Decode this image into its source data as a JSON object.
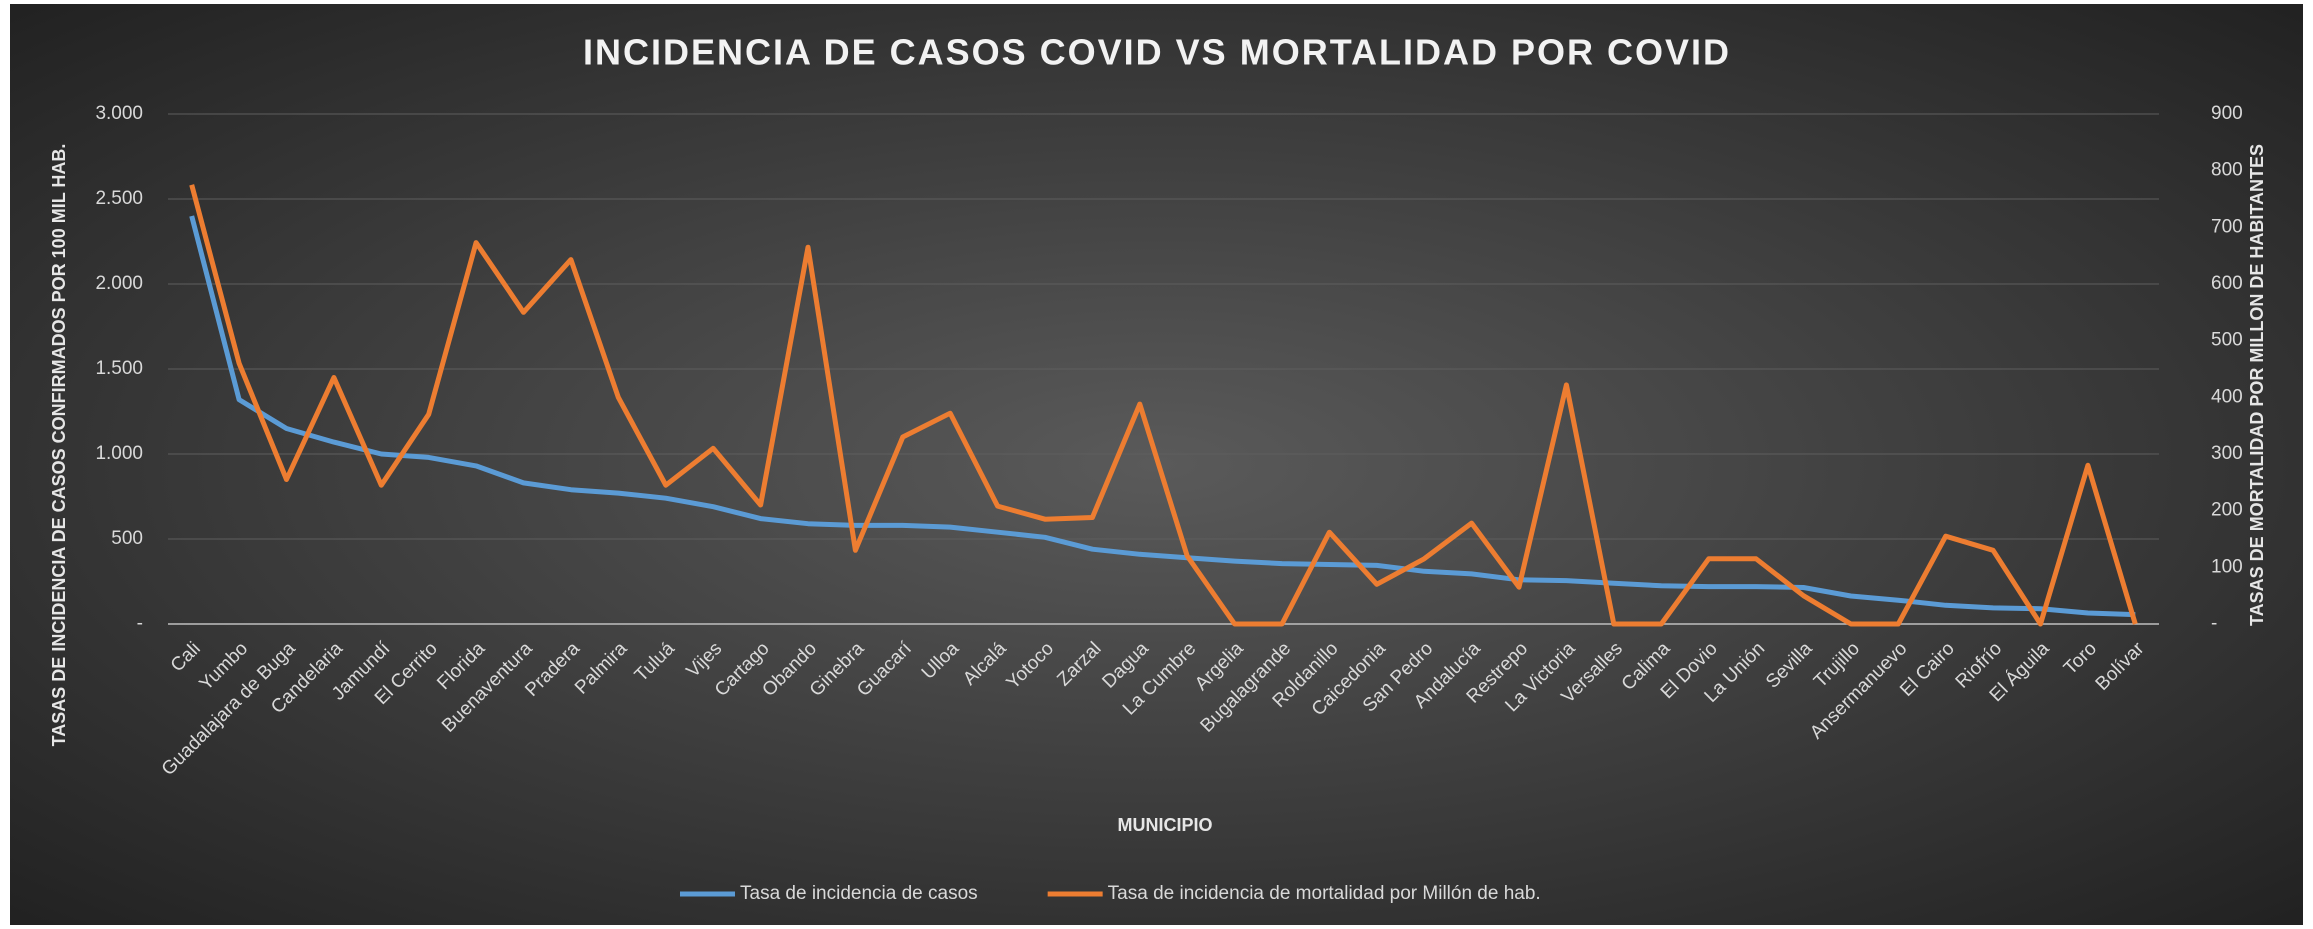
{
  "chart_data": {
    "type": "line",
    "title": "INCIDENCIA DE CASOS COVID VS MORTALIDAD POR COVID",
    "x_label": "MUNICIPIO",
    "y_label": "TASAS DE INCIDENCIA DE CASOS CONFIRMADOS POR 100 MIL HAB.",
    "y2_label": "TASAS DE MORTALIDAD POR MILLON DE HABITANTES",
    "categories": [
      "Cali",
      "Yumbo",
      "Guadalajara de Buga",
      "Candelaria",
      "Jamundí",
      "El Cerrito",
      "Florida",
      "Buenaventura",
      "Pradera",
      "Palmira",
      "Tuluá",
      "Vijes",
      "Cartago",
      "Obando",
      "Ginebra",
      "Guacarí",
      "Ulloa",
      "Alcalá",
      "Yotoco",
      "Zarzal",
      "Dagua",
      "La Cumbre",
      "Argelia",
      "Bugalagrande",
      "Roldanillo",
      "Caicedonia",
      "San Pedro",
      "Andalucía",
      "Restrepo",
      "La Victoria",
      "Versalles",
      "Calima",
      "El Dovio",
      "La Unión",
      "Sevilla",
      "Trujillo",
      "Ansermanuevo",
      "El Cairo",
      "Riofrío",
      "El Águila",
      "Toro",
      "Bolívar"
    ],
    "series": [
      {
        "name": "Tasa de incidencia de casos",
        "color": "#5b9bd5",
        "axis": "y",
        "values": [
          2400,
          1320,
          1150,
          1070,
          1000,
          980,
          930,
          830,
          790,
          770,
          740,
          690,
          620,
          590,
          580,
          580,
          570,
          540,
          510,
          440,
          410,
          390,
          370,
          355,
          350,
          345,
          310,
          295,
          260,
          255,
          240,
          225,
          220,
          220,
          215,
          165,
          140,
          110,
          95,
          90,
          65,
          55
        ]
      },
      {
        "name": "Tasa de incidencia de mortalidad por Millón de hab.",
        "color": "#ed7d31",
        "axis": "y2",
        "values": [
          775,
          460,
          255,
          435,
          245,
          370,
          673,
          550,
          643,
          400,
          245,
          310,
          210,
          665,
          130,
          330,
          372,
          208,
          185,
          188,
          388,
          120,
          0,
          0,
          162,
          70,
          115,
          178,
          65,
          422,
          0,
          0,
          115,
          115,
          50,
          0,
          0,
          155,
          130,
          0,
          280,
          0
        ]
      }
    ],
    "ylim": [
      0,
      3000
    ],
    "yticks": [
      {
        "value": 0,
        "label": "-"
      },
      500,
      {
        "value": 1000,
        "label": "1.000"
      },
      {
        "value": 1500,
        "label": "1.500"
      },
      {
        "value": 2000,
        "label": "2.000"
      },
      {
        "value": 2500,
        "label": "2.500"
      },
      {
        "value": 3000,
        "label": "3.000"
      }
    ],
    "y2lim": [
      0,
      900
    ],
    "y2ticks": [
      {
        "value": 0,
        "label": "-"
      },
      100,
      200,
      300,
      400,
      500,
      600,
      700,
      800,
      900
    ],
    "grid": true,
    "legend": "bottom"
  }
}
